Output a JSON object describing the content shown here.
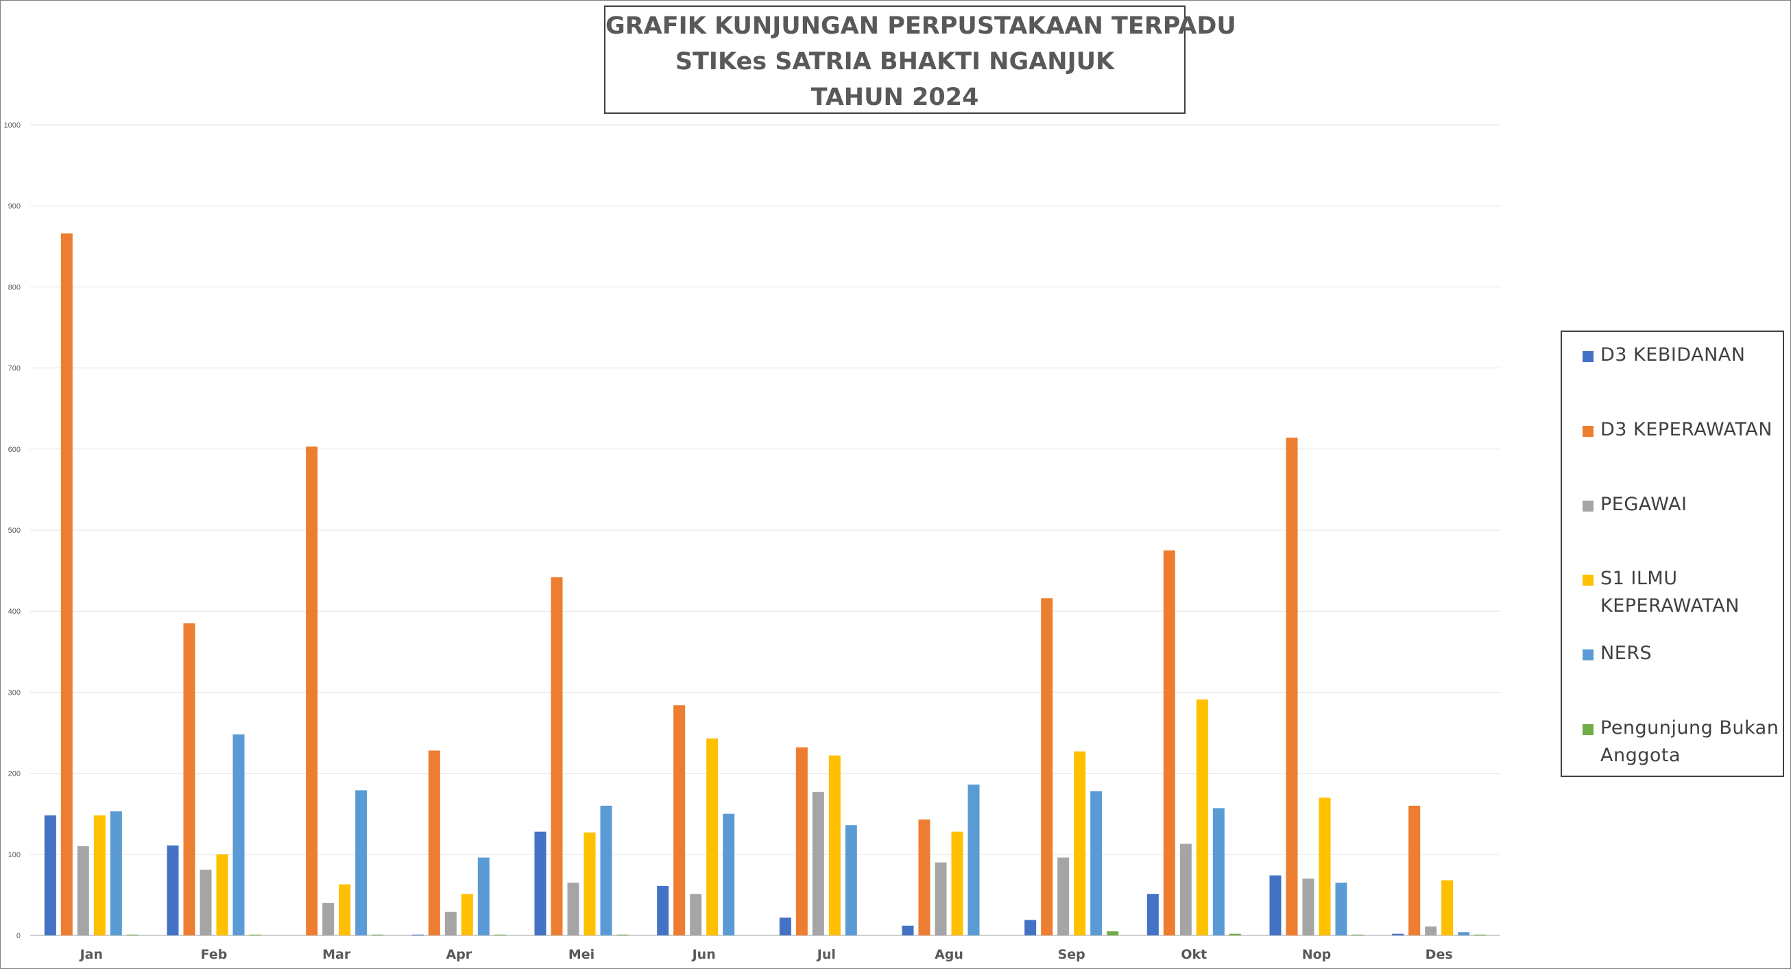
{
  "chart_data": {
    "type": "bar",
    "title_lines": [
      "GRAFIK KUNJUNGAN PERPUSTAKAAN TERPADU",
      "STIKes SATRIA BHAKTI NGANJUK",
      "TAHUN 2024"
    ],
    "categories": [
      "Jan",
      "Feb",
      "Mar",
      "Apr",
      "Mei",
      "Jun",
      "Jul",
      "Agu",
      "Sep",
      "Okt",
      "Nop",
      "Des"
    ],
    "ylim": [
      0,
      1000
    ],
    "yticks": [
      "0",
      "100",
      "200",
      "300",
      "400",
      "500",
      "600",
      "700",
      "800",
      "900",
      "1000"
    ],
    "grid": true,
    "legend_position": "right",
    "series": [
      {
        "name": "D3 KEBIDANAN",
        "color": "#4472c4",
        "values": [
          148,
          111,
          0,
          1,
          128,
          61,
          22,
          12,
          19,
          51,
          74,
          2
        ]
      },
      {
        "name": "D3 KEPERAWATAN",
        "color": "#ed7d31",
        "values": [
          866,
          385,
          603,
          228,
          442,
          284,
          232,
          143,
          416,
          475,
          614,
          160
        ]
      },
      {
        "name": "PEGAWAI",
        "color": "#a5a5a5",
        "values": [
          110,
          81,
          40,
          29,
          65,
          51,
          177,
          90,
          96,
          113,
          70,
          11
        ]
      },
      {
        "name": "S1 ILMU KEPERAWATAN",
        "color": "#ffc000",
        "values": [
          148,
          100,
          63,
          51,
          127,
          243,
          222,
          128,
          227,
          291,
          170,
          68
        ]
      },
      {
        "name": "NERS",
        "color": "#5b9bd5",
        "values": [
          153,
          248,
          179,
          96,
          160,
          150,
          136,
          186,
          178,
          157,
          65,
          4
        ]
      },
      {
        "name": "Pengunjung Bukan Anggota",
        "color": "#70ad47",
        "values": [
          1,
          1,
          1,
          1,
          1,
          0,
          0,
          0,
          5,
          2,
          1,
          1
        ]
      }
    ]
  }
}
